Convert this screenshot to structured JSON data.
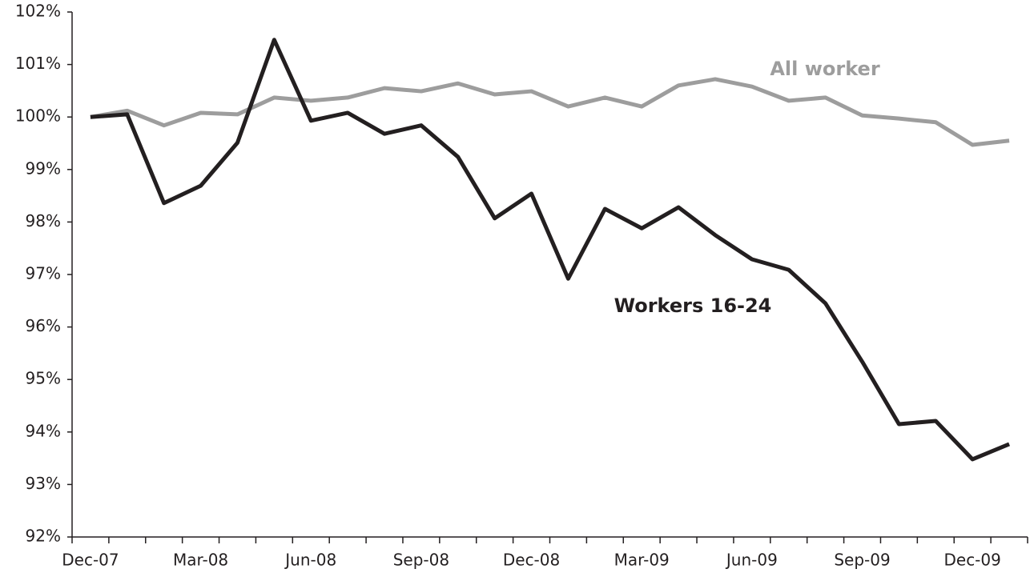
{
  "chart_data": {
    "type": "line",
    "categories": [
      "Dec-07",
      null,
      null,
      "Mar-08",
      null,
      null,
      "Jun-08",
      null,
      null,
      "Sep-08",
      null,
      null,
      "Dec-08",
      null,
      null,
      "Mar-09",
      null,
      null,
      "Jun-09",
      null,
      null,
      "Sep-09",
      null,
      null,
      "Dec-09",
      null
    ],
    "series": [
      {
        "name": "All worker",
        "color": "#9d9d9d",
        "values": [
          100.0,
          100.12,
          99.84,
          100.08,
          100.05,
          100.37,
          100.31,
          100.37,
          100.55,
          100.49,
          100.64,
          100.43,
          100.49,
          100.2,
          100.37,
          100.2,
          100.6,
          100.72,
          100.58,
          100.31,
          100.37,
          100.03,
          99.97,
          99.9,
          99.47,
          99.55
        ]
      },
      {
        "name": "Workers 16-24",
        "color": "#231f20",
        "values": [
          100.0,
          100.05,
          98.36,
          98.69,
          99.51,
          101.47,
          99.93,
          100.08,
          99.68,
          99.84,
          99.24,
          98.07,
          98.54,
          96.92,
          98.25,
          97.88,
          98.28,
          97.75,
          97.29,
          97.09,
          96.45,
          95.34,
          94.15,
          94.21,
          93.48,
          93.77
        ]
      }
    ],
    "ylim": [
      92,
      102
    ],
    "yticks": [
      {
        "value": 92,
        "label": "92%"
      },
      {
        "value": 93,
        "label": "93%"
      },
      {
        "value": 94,
        "label": "94%"
      },
      {
        "value": 95,
        "label": "95%"
      },
      {
        "value": 96,
        "label": "96%"
      },
      {
        "value": 97,
        "label": "97%"
      },
      {
        "value": 98,
        "label": "98%"
      },
      {
        "value": 99,
        "label": "99%"
      },
      {
        "value": 100,
        "label": "100%"
      },
      {
        "value": 101,
        "label": "101%"
      },
      {
        "value": 102,
        "label": "102%"
      }
    ],
    "grid": false
  }
}
